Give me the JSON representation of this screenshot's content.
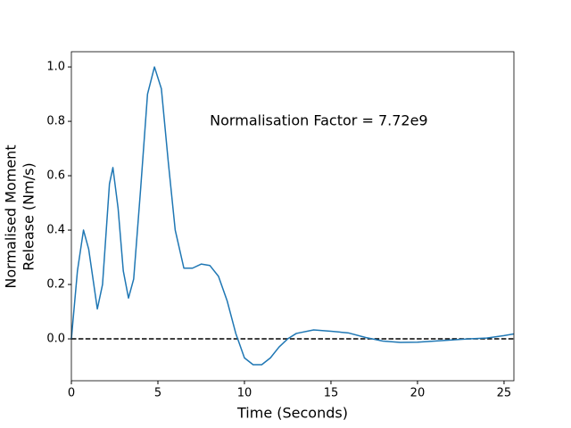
{
  "chart_data": {
    "type": "line",
    "xlabel": "Time (Seconds)",
    "ylabel": [
      "Normalised Moment",
      "Release (Nm/s)"
    ],
    "annotation": "Normalisation Factor = 7.72e9",
    "xlim": [
      0,
      25.57
    ],
    "ylim": [
      -0.154,
      1.056
    ],
    "xticks": [
      0,
      5,
      10,
      15,
      20,
      25
    ],
    "yticks": [
      {
        "value": 0,
        "label": "0.0"
      },
      {
        "value": 0.2,
        "label": "0.2"
      },
      {
        "value": 0.4,
        "label": "0.4"
      },
      {
        "value": 0.6,
        "label": "0.6"
      },
      {
        "value": 0.8,
        "label": "0.8"
      },
      {
        "value": 1.0,
        "label": "1.0"
      }
    ],
    "hline": 0,
    "x": [
      0,
      0.35,
      0.7,
      1.0,
      1.5,
      1.8,
      2.2,
      2.4,
      2.7,
      3.0,
      3.3,
      3.6,
      4.0,
      4.4,
      4.8,
      5.2,
      5.6,
      6.0,
      6.5,
      7.0,
      7.5,
      8.0,
      8.5,
      9.0,
      9.5,
      10.0,
      10.5,
      11.0,
      11.5,
      12.0,
      12.5,
      13.0,
      14.0,
      15.0,
      16.0,
      17.0,
      18.0,
      19.0,
      20.0,
      21.0,
      22.0,
      23.0,
      24.0,
      25.0,
      25.57
    ],
    "series": [
      {
        "color": "#1f77b4",
        "values": [
          0,
          0.25,
          0.4,
          0.33,
          0.11,
          0.2,
          0.57,
          0.63,
          0.48,
          0.25,
          0.15,
          0.22,
          0.55,
          0.9,
          1.0,
          0.92,
          0.65,
          0.4,
          0.26,
          0.26,
          0.275,
          0.27,
          0.23,
          0.14,
          0.02,
          -0.07,
          -0.095,
          -0.095,
          -0.07,
          -0.03,
          0.0,
          0.02,
          0.033,
          0.028,
          0.022,
          0.005,
          -0.008,
          -0.013,
          -0.012,
          -0.008,
          -0.004,
          0.0,
          0.003,
          0.012,
          0.018
        ]
      }
    ]
  }
}
